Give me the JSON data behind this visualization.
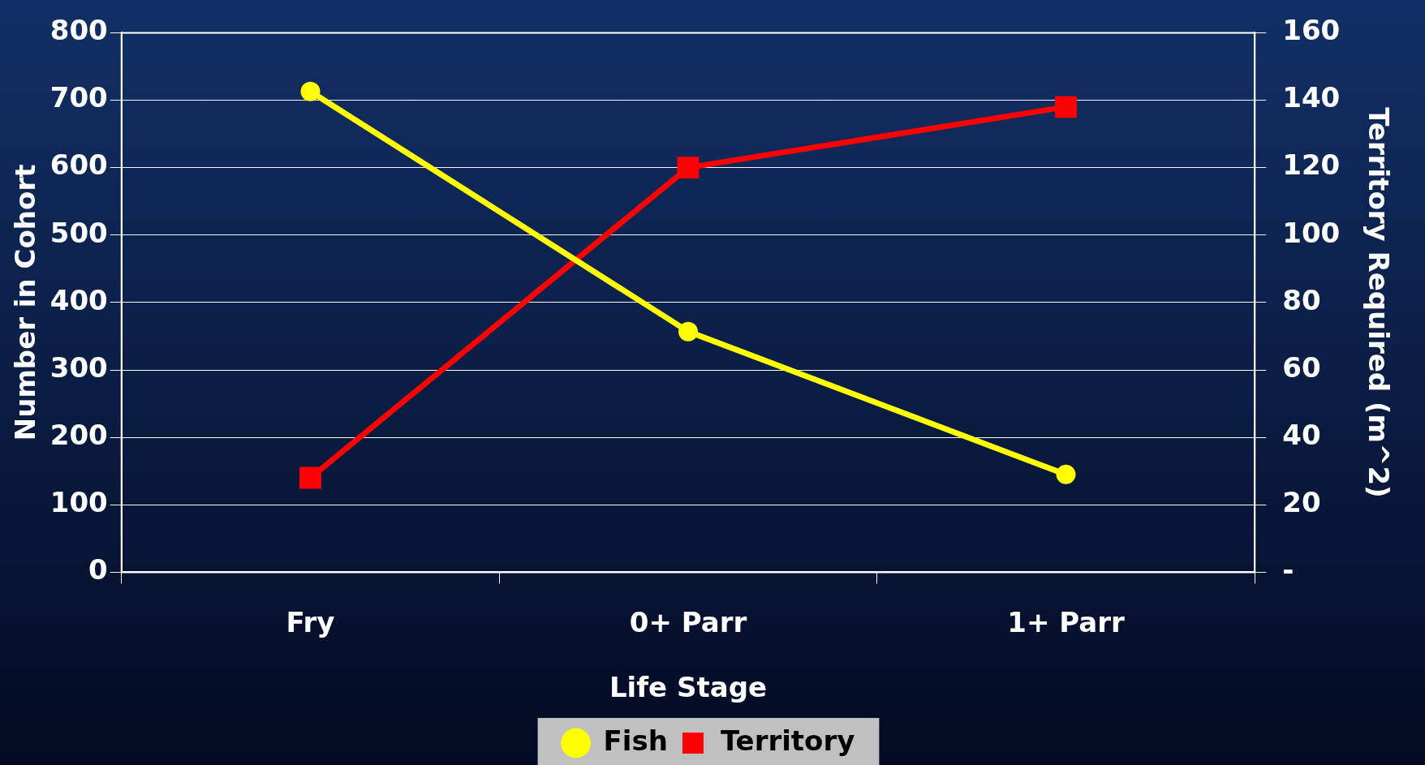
{
  "chart_data": {
    "type": "line",
    "xlabel": "Life Stage",
    "ylabel": "Number in Cohort",
    "y2label": "Territory Required (m^2)",
    "categories": [
      "Fry",
      "0+ Parr",
      "1+ Parr"
    ],
    "series": [
      {
        "name": "Fish",
        "color": "#ffff00",
        "values": [
          713,
          357,
          145
        ],
        "marker": "circle"
      },
      {
        "name": "Territory",
        "color": "#ff0000",
        "values": [
          28,
          120,
          138
        ],
        "axis": "y2",
        "marker": "square"
      }
    ],
    "ylim": [
      0,
      800
    ],
    "yticks": [
      0,
      100,
      200,
      300,
      400,
      500,
      600,
      700,
      800
    ],
    "y2lim": [
      0,
      160
    ],
    "y2ticks": [
      {
        "value": 0,
        "label": "-"
      },
      20,
      40,
      60,
      80,
      100,
      120,
      140,
      160
    ],
    "grid": "y",
    "legend": "bottom",
    "line_style": "solid"
  }
}
